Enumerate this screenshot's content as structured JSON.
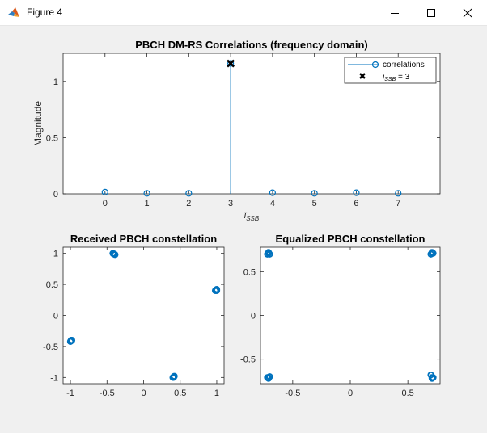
{
  "window": {
    "title": "Figure 4",
    "app_icon": "matlab-icon",
    "controls": [
      "minimize-icon",
      "maximize-icon",
      "close-icon"
    ]
  },
  "chart_data": [
    {
      "type": "stem",
      "title": "PBCH DM-RS Correlations (frequency domain)",
      "xlabel": "ī_SSB",
      "ylabel": "Magnitude",
      "xlim": [
        -1,
        8
      ],
      "ylim": [
        0,
        1.25
      ],
      "xticks": [
        0,
        1,
        2,
        3,
        4,
        5,
        6,
        7
      ],
      "yticks": [
        0,
        0.5,
        1
      ],
      "yticklabels": [
        "0",
        "0.5",
        "1"
      ],
      "grid": false,
      "legend_position": "top-right",
      "legend": [
        "correlations",
        "ī_SSB = 3"
      ],
      "series": [
        {
          "name": "correlations",
          "marker": "circle",
          "color": "#0072bd",
          "x": [
            0,
            1,
            2,
            3,
            4,
            5,
            6,
            7
          ],
          "y": [
            0.015,
            0.005,
            0.005,
            1.16,
            0.01,
            0.005,
            0.01,
            0.005
          ]
        },
        {
          "name": "ī_SSB = 3",
          "marker": "x",
          "color": "#000000",
          "x": [
            3
          ],
          "y": [
            1.16
          ]
        }
      ]
    },
    {
      "type": "scatter",
      "title": "Received PBCH constellation",
      "xlim": [
        -1.1,
        1.1
      ],
      "ylim": [
        -1.1,
        1.1
      ],
      "xticks": [
        -1,
        -0.5,
        0,
        0.5,
        1
      ],
      "xticklabels": [
        "-1",
        "-0.5",
        "0",
        "0.5",
        "1"
      ],
      "yticks": [
        -1,
        -0.5,
        0,
        0.5,
        1
      ],
      "yticklabels": [
        "-1",
        "-0.5",
        "0",
        "0.5",
        "1"
      ],
      "color": "#0072bd",
      "points": [
        [
          -0.41,
          0.99
        ],
        [
          -0.4,
          0.99
        ],
        [
          -0.42,
          1.0
        ],
        [
          -0.39,
          0.98
        ],
        [
          0.99,
          0.41
        ],
        [
          1.0,
          0.42
        ],
        [
          0.98,
          0.4
        ],
        [
          1.0,
          0.4
        ],
        [
          -0.99,
          -0.41
        ],
        [
          -1.0,
          -0.42
        ],
        [
          -0.98,
          -0.4
        ],
        [
          -0.99,
          -0.4
        ],
        [
          0.41,
          -0.99
        ],
        [
          0.4,
          -1.0
        ],
        [
          0.42,
          -0.98
        ],
        [
          0.41,
          -1.0
        ]
      ]
    },
    {
      "type": "scatter",
      "title": "Equalized PBCH constellation",
      "xlim": [
        -0.78,
        0.78
      ],
      "ylim": [
        -0.78,
        0.78
      ],
      "xticks": [
        -0.5,
        0,
        0.5
      ],
      "xticklabels": [
        "-0.5",
        "0",
        "0.5"
      ],
      "yticks": [
        -0.5,
        0,
        0.5
      ],
      "yticklabels": [
        "-0.5",
        "0",
        "0.5"
      ],
      "color": "#0072bd",
      "points": [
        [
          -0.71,
          0.71
        ],
        [
          -0.7,
          0.7
        ],
        [
          -0.72,
          0.7
        ],
        [
          -0.71,
          0.72
        ],
        [
          0.71,
          0.71
        ],
        [
          0.7,
          0.7
        ],
        [
          0.72,
          0.71
        ],
        [
          0.71,
          0.72
        ],
        [
          -0.71,
          -0.71
        ],
        [
          -0.7,
          -0.7
        ],
        [
          -0.72,
          -0.71
        ],
        [
          -0.71,
          -0.72
        ],
        [
          0.71,
          -0.71
        ],
        [
          0.7,
          -0.68
        ],
        [
          0.72,
          -0.71
        ],
        [
          0.71,
          -0.72
        ]
      ]
    }
  ]
}
